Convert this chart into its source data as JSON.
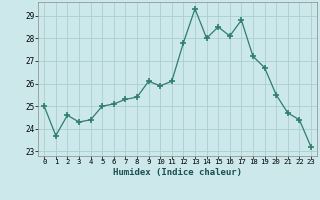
{
  "x": [
    0,
    1,
    2,
    3,
    4,
    5,
    6,
    7,
    8,
    9,
    10,
    11,
    12,
    13,
    14,
    15,
    16,
    17,
    18,
    19,
    20,
    21,
    22,
    23
  ],
  "y": [
    25.0,
    23.7,
    24.6,
    24.3,
    24.4,
    25.0,
    25.1,
    25.3,
    25.4,
    26.1,
    25.9,
    26.1,
    27.8,
    29.3,
    28.0,
    28.5,
    28.1,
    28.8,
    27.2,
    26.7,
    25.5,
    24.7,
    24.4,
    23.2
  ],
  "line_color": "#2e7d6e",
  "marker": "+",
  "marker_size": 4,
  "bg_color": "#cce8ea",
  "grid_color": "#aacfd2",
  "xlabel": "Humidex (Indice chaleur)",
  "xlim": [
    -0.5,
    23.5
  ],
  "ylim": [
    22.8,
    29.6
  ],
  "yticks": [
    23,
    24,
    25,
    26,
    27,
    28,
    29
  ],
  "xtick_labels": [
    "0",
    "1",
    "2",
    "3",
    "4",
    "5",
    "6",
    "7",
    "8",
    "9",
    "10",
    "11",
    "12",
    "13",
    "14",
    "15",
    "16",
    "17",
    "18",
    "19",
    "20",
    "21",
    "22",
    "23"
  ]
}
